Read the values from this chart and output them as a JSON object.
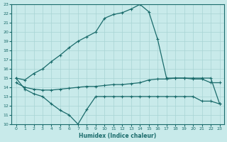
{
  "xlabel": "Humidex (Indice chaleur)",
  "bg_color": "#c8eaea",
  "grid_color": "#a8d4d4",
  "line_color": "#1a6b6b",
  "xlim": [
    -0.5,
    23.5
  ],
  "ylim": [
    10,
    23
  ],
  "xticks": [
    0,
    1,
    2,
    3,
    4,
    5,
    6,
    7,
    8,
    9,
    10,
    11,
    12,
    13,
    14,
    15,
    16,
    17,
    18,
    19,
    20,
    21,
    22,
    23
  ],
  "yticks": [
    10,
    11,
    12,
    13,
    14,
    15,
    16,
    17,
    18,
    19,
    20,
    21,
    22,
    23
  ],
  "line_top_x": [
    0,
    1,
    2,
    3,
    4,
    5,
    6,
    7,
    8,
    9,
    10,
    11,
    12,
    13,
    14,
    15,
    16,
    17,
    18,
    19,
    20,
    21,
    22,
    23
  ],
  "line_top_y": [
    15.0,
    14.8,
    15.5,
    16.0,
    16.8,
    17.5,
    18.3,
    19.0,
    19.5,
    20.0,
    21.5,
    21.9,
    22.1,
    22.5,
    23.0,
    22.2,
    19.2,
    15.0,
    15.0,
    15.0,
    14.9,
    14.9,
    14.5,
    14.5
  ],
  "line_mid_x": [
    0,
    1,
    2,
    3,
    4,
    5,
    6,
    7,
    8,
    9,
    10,
    11,
    12,
    13,
    14,
    15,
    16,
    17,
    18,
    19,
    20,
    21,
    22,
    23
  ],
  "line_mid_y": [
    14.5,
    14.0,
    13.8,
    13.7,
    13.7,
    13.8,
    13.9,
    14.0,
    14.1,
    14.1,
    14.2,
    14.3,
    14.3,
    14.4,
    14.5,
    14.8,
    14.9,
    14.9,
    15.0,
    15.0,
    15.0,
    15.0,
    15.0,
    12.2
  ],
  "line_bot_x": [
    0,
    1,
    2,
    3,
    4,
    5,
    6,
    7,
    8,
    9,
    10,
    11,
    12,
    13,
    14,
    15,
    16,
    17,
    18,
    19,
    20,
    21,
    22,
    23
  ],
  "line_bot_y": [
    15.0,
    13.8,
    13.3,
    13.0,
    12.2,
    11.5,
    11.0,
    10.0,
    11.6,
    13.0,
    13.0,
    13.0,
    13.0,
    13.0,
    13.0,
    13.0,
    13.0,
    13.0,
    13.0,
    13.0,
    13.0,
    12.5,
    12.5,
    12.2
  ]
}
